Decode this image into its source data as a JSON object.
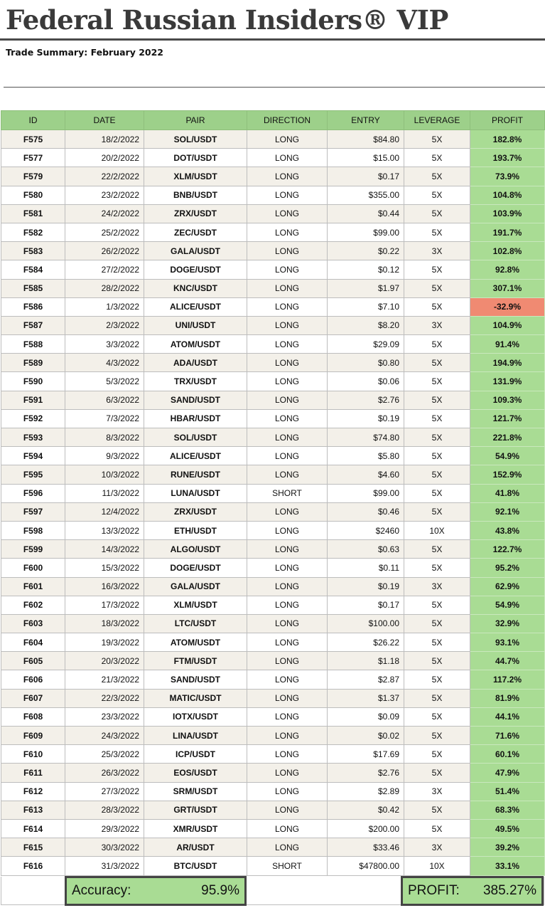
{
  "header": {
    "title": "Federal Russian Insiders® VIP",
    "subtitle": "Trade Summary: February 2022"
  },
  "table": {
    "columns": [
      "ID",
      "DATE",
      "PAIR",
      "DIRECTION",
      "ENTRY",
      "LEVERAGE",
      "PROFIT"
    ],
    "rows": [
      [
        "F575",
        "18/2/2022",
        "SOL/USDT",
        "LONG",
        "$84.80",
        "5X",
        "182.8%"
      ],
      [
        "F577",
        "20/2/2022",
        "DOT/USDT",
        "LONG",
        "$15.00",
        "5X",
        "193.7%"
      ],
      [
        "F579",
        "22/2/2022",
        "XLM/USDT",
        "LONG",
        "$0.17",
        "5X",
        "73.9%"
      ],
      [
        "F580",
        "23/2/2022",
        "BNB/USDT",
        "LONG",
        "$355.00",
        "5X",
        "104.8%"
      ],
      [
        "F581",
        "24/2/2022",
        "ZRX/USDT",
        "LONG",
        "$0.44",
        "5X",
        "103.9%"
      ],
      [
        "F582",
        "25/2/2022",
        "ZEC/USDT",
        "LONG",
        "$99.00",
        "5X",
        "191.7%"
      ],
      [
        "F583",
        "26/2/2022",
        "GALA/USDT",
        "LONG",
        "$0.22",
        "3X",
        "102.8%"
      ],
      [
        "F584",
        "27/2/2022",
        "DOGE/USDT",
        "LONG",
        "$0.12",
        "5X",
        "92.8%"
      ],
      [
        "F585",
        "28/2/2022",
        "KNC/USDT",
        "LONG",
        "$1.97",
        "5X",
        "307.1%"
      ],
      [
        "F586",
        "1/3/2022",
        "ALICE/USDT",
        "LONG",
        "$7.10",
        "5X",
        "-32.9%"
      ],
      [
        "F587",
        "2/3/2022",
        "UNI/USDT",
        "LONG",
        "$8.20",
        "3X",
        "104.9%"
      ],
      [
        "F588",
        "3/3/2022",
        "ATOM/USDT",
        "LONG",
        "$29.09",
        "5X",
        "91.4%"
      ],
      [
        "F589",
        "4/3/2022",
        "ADA/USDT",
        "LONG",
        "$0.80",
        "5X",
        "194.9%"
      ],
      [
        "F590",
        "5/3/2022",
        "TRX/USDT",
        "LONG",
        "$0.06",
        "5X",
        "131.9%"
      ],
      [
        "F591",
        "6/3/2022",
        "SAND/USDT",
        "LONG",
        "$2.76",
        "5X",
        "109.3%"
      ],
      [
        "F592",
        "7/3/2022",
        "HBAR/USDT",
        "LONG",
        "$0.19",
        "5X",
        "121.7%"
      ],
      [
        "F593",
        "8/3/2022",
        "SOL/USDT",
        "LONG",
        "$74.80",
        "5X",
        "221.8%"
      ],
      [
        "F594",
        "9/3/2022",
        "ALICE/USDT",
        "LONG",
        "$5.80",
        "5X",
        "54.9%"
      ],
      [
        "F595",
        "10/3/2022",
        "RUNE/USDT",
        "LONG",
        "$4.60",
        "5X",
        "152.9%"
      ],
      [
        "F596",
        "11/3/2022",
        "LUNA/USDT",
        "SHORT",
        "$99.00",
        "5X",
        "41.8%"
      ],
      [
        "F597",
        "12/4/2022",
        "ZRX/USDT",
        "LONG",
        "$0.46",
        "5X",
        "92.1%"
      ],
      [
        "F598",
        "13/3/2022",
        "ETH/USDT",
        "LONG",
        "$2460",
        "10X",
        "43.8%"
      ],
      [
        "F599",
        "14/3/2022",
        "ALGO/USDT",
        "LONG",
        "$0.63",
        "5X",
        "122.7%"
      ],
      [
        "F600",
        "15/3/2022",
        "DOGE/USDT",
        "LONG",
        "$0.11",
        "5X",
        "95.2%"
      ],
      [
        "F601",
        "16/3/2022",
        "GALA/USDT",
        "LONG",
        "$0.19",
        "3X",
        "62.9%"
      ],
      [
        "F602",
        "17/3/2022",
        "XLM/USDT",
        "LONG",
        "$0.17",
        "5X",
        "54.9%"
      ],
      [
        "F603",
        "18/3/2022",
        "LTC/USDT",
        "LONG",
        "$100.00",
        "5X",
        "32.9%"
      ],
      [
        "F604",
        "19/3/2022",
        "ATOM/USDT",
        "LONG",
        "$26.22",
        "5X",
        "93.1%"
      ],
      [
        "F605",
        "20/3/2022",
        "FTM/USDT",
        "LONG",
        "$1.18",
        "5X",
        "44.7%"
      ],
      [
        "F606",
        "21/3/2022",
        "SAND/USDT",
        "LONG",
        "$2.87",
        "5X",
        "117.2%"
      ],
      [
        "F607",
        "22/3/2022",
        "MATIC/USDT",
        "LONG",
        "$1.37",
        "5X",
        "81.9%"
      ],
      [
        "F608",
        "23/3/2022",
        "IOTX/USDT",
        "LONG",
        "$0.09",
        "5X",
        "44.1%"
      ],
      [
        "F609",
        "24/3/2022",
        "LINA/USDT",
        "LONG",
        "$0.02",
        "5X",
        "71.6%"
      ],
      [
        "F610",
        "25/3/2022",
        "ICP/USDT",
        "LONG",
        "$17.69",
        "5X",
        "60.1%"
      ],
      [
        "F611",
        "26/3/2022",
        "EOS/USDT",
        "LONG",
        "$2.76",
        "5X",
        "47.9%"
      ],
      [
        "F612",
        "27/3/2022",
        "SRM/USDT",
        "LONG",
        "$2.89",
        "3X",
        "51.4%"
      ],
      [
        "F613",
        "28/3/2022",
        "GRT/USDT",
        "LONG",
        "$0.42",
        "5X",
        "68.3%"
      ],
      [
        "F614",
        "29/3/2022",
        "XMR/USDT",
        "LONG",
        "$200.00",
        "5X",
        "49.5%"
      ],
      [
        "F615",
        "30/3/2022",
        "AR/USDT",
        "LONG",
        "$33.46",
        "3X",
        "39.2%"
      ],
      [
        "F616",
        "31/3/2022",
        "BTC/USDT",
        "SHORT",
        "$47800.00",
        "10X",
        "33.1%"
      ]
    ]
  },
  "summary": {
    "accuracy_label": "Accuracy:",
    "accuracy_value": "95.9%",
    "profit_label": "PROFIT:",
    "profit_value": "385.27%"
  },
  "colors": {
    "header_green": "#9dd08a",
    "profit_green": "#a9dc94",
    "loss_red": "#f08a72",
    "row_stripe": "#f3f0e9"
  }
}
